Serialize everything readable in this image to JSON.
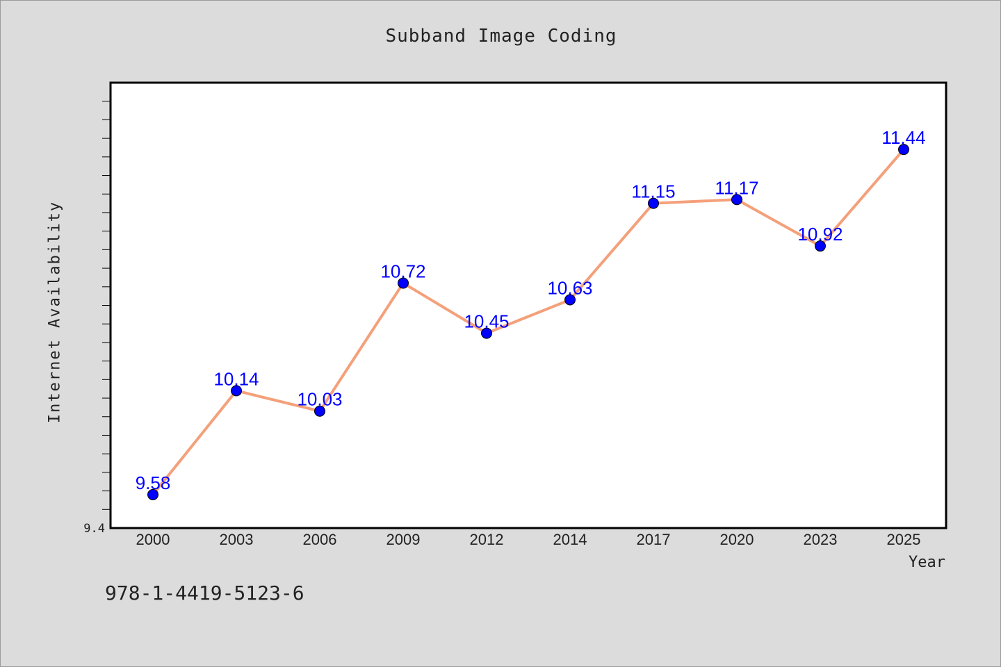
{
  "chart_data": {
    "type": "line",
    "title": "Subband Image Coding",
    "xlabel": "Year",
    "ylabel": "Internet Availability",
    "categories": [
      "2000",
      "2003",
      "2006",
      "2009",
      "2012",
      "2014",
      "2017",
      "2020",
      "2023",
      "2025"
    ],
    "series": [
      {
        "values": [
          9.58,
          10.14,
          10.03,
          10.72,
          10.45,
          10.63,
          11.15,
          11.17,
          10.92,
          11.44
        ]
      }
    ],
    "data_labels": [
      "9.58",
      "10.14",
      "10.03",
      "10.72",
      "10.45",
      "10.63",
      "11.15",
      "11.17",
      "10.92",
      "11.44"
    ],
    "ylim": [
      9.4,
      11.8
    ],
    "y_tick_labels": [
      "9.4"
    ],
    "grid": false,
    "legend": "none",
    "colors": {
      "line": "#f4a07a",
      "marker": "#0000ff",
      "label": "#0000ff",
      "plot_background": "#ffffff",
      "page_background": "#dcdcdc"
    }
  },
  "footer": {
    "isbn": "978-1-4419-5123-6"
  }
}
